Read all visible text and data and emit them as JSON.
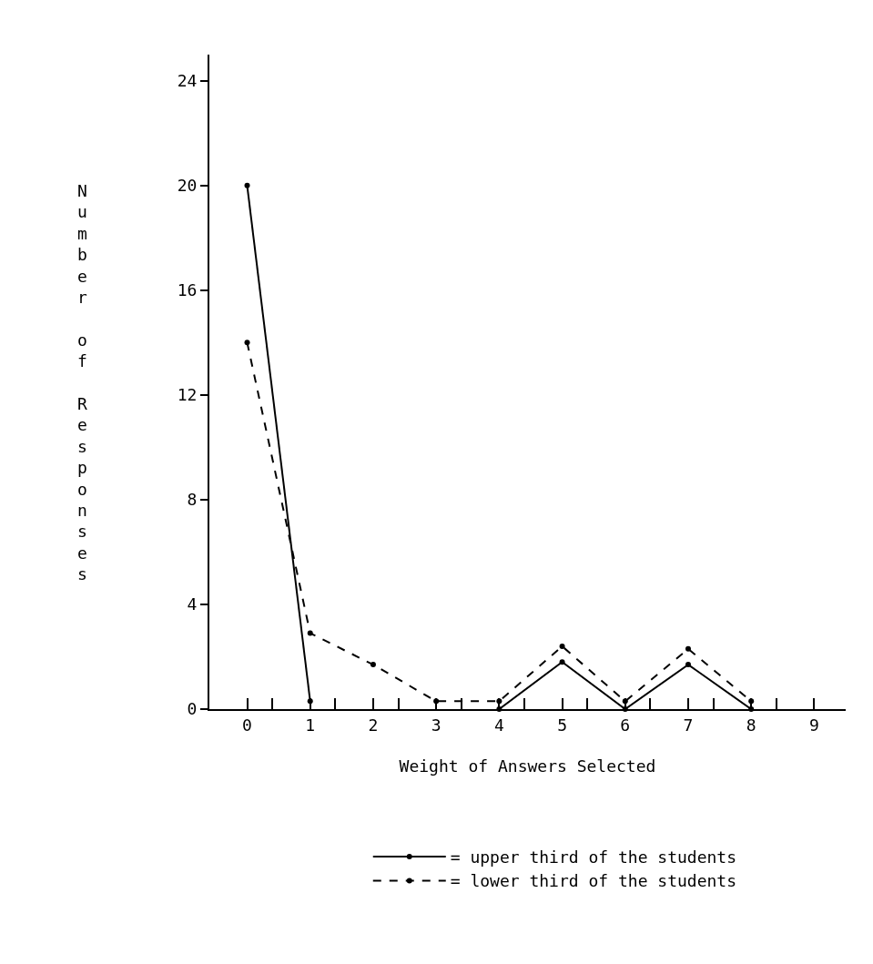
{
  "chart_data": {
    "type": "line",
    "xlabel": "Weight of Answers Selected",
    "ylabel": "Number of Responses",
    "x": [
      0,
      1,
      2,
      3,
      4,
      5,
      6,
      7,
      8
    ],
    "series": [
      {
        "name": "= upper third of the students",
        "color": "#000000",
        "line_style": "solid",
        "values": [
          20,
          0.3,
          null,
          null,
          0,
          1.8,
          0,
          1.7,
          0
        ]
      },
      {
        "name": "= lower third of the students",
        "color": "#000000",
        "line_style": "dashed",
        "values": [
          14,
          2.9,
          1.7,
          0.3,
          0.3,
          2.4,
          0.3,
          2.3,
          0.3
        ]
      }
    ],
    "xlim": [
      -0.6,
      9.5
    ],
    "xticks": [
      0,
      {
        "value": 0.4,
        "label": null
      },
      1,
      {
        "value": 1.4,
        "label": null
      },
      2,
      {
        "value": 2.4,
        "label": null
      },
      3,
      {
        "value": 3.4,
        "label": null
      },
      4,
      {
        "value": 4.4,
        "label": null
      },
      5,
      {
        "value": 5.4,
        "label": null
      },
      6,
      {
        "value": 6.4,
        "label": null
      },
      7,
      {
        "value": 7.4,
        "label": null
      },
      8,
      {
        "value": 8.4,
        "label": null
      },
      9
    ],
    "ylim": [
      0,
      25
    ],
    "yticks": [
      0,
      4,
      8,
      12,
      16,
      20,
      24
    ],
    "marker": "circle",
    "grid": false,
    "legend": "bottom"
  }
}
